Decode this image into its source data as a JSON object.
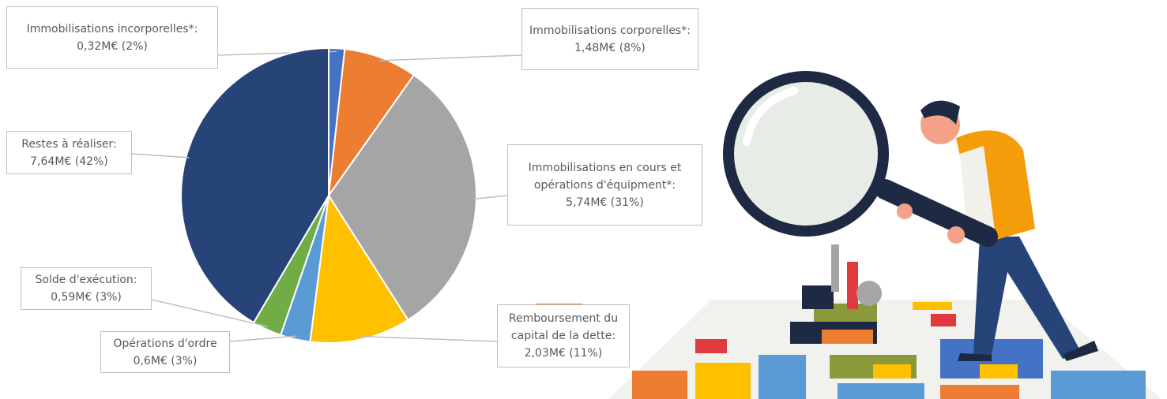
{
  "chart_data": {
    "type": "pie",
    "values": [
      0.32,
      1.48,
      5.74,
      2.03,
      0.6,
      0.59,
      7.64
    ],
    "value_labels": [
      "Immobilisations incorporelles*: 0,32M€ (2%)",
      "Immobilisations corporelles*: 1,48M€ (8%)",
      "Immobilisations en cours et opérations d'équipment*: 5,74M€ (31%)",
      "Remboursement du capital de la dette: 2,03M€ (11%)",
      "Opérations d'ordre 0,6M€ (3%)",
      "Solde d'exécution: 0,59M€ (3%)",
      "Restes à réaliser: 7,64M€ (42%)"
    ],
    "colors": [
      "#4472c4",
      "#ed7d31",
      "#a5a5a5",
      "#ffc000",
      "#5b9bd5",
      "#70ad47",
      "#264478"
    ]
  }
}
